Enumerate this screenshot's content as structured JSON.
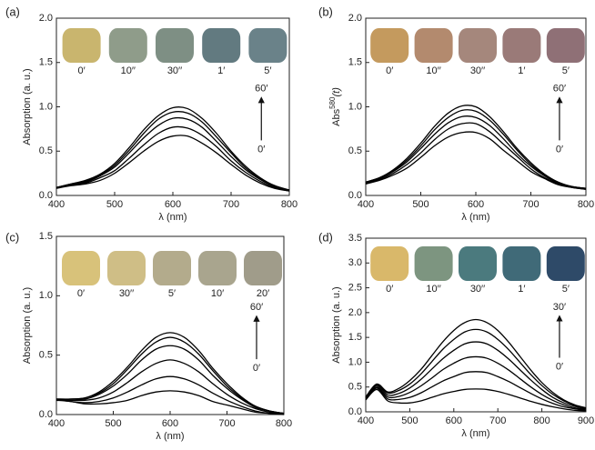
{
  "chart_data": [
    {
      "type": "line",
      "panel": "(a)",
      "xlabel": "λ (nm)",
      "ylabel": "Absorption (a. u.)",
      "x": [
        400,
        425,
        450,
        475,
        500,
        525,
        550,
        575,
        600,
        625,
        650,
        675,
        700,
        725,
        750,
        775,
        800
      ],
      "xlim": [
        400,
        800
      ],
      "xticks": [
        400,
        500,
        600,
        700,
        800
      ],
      "ylim": [
        0,
        2
      ],
      "yticks": [
        {
          "value": 0,
          "label": "0.0"
        },
        0.5,
        {
          "value": 1,
          "label": "1.0"
        },
        1.5,
        {
          "value": 2,
          "label": "2.0"
        }
      ],
      "series": [
        {
          "color": "#000000",
          "values": [
            0.08,
            0.11,
            0.13,
            0.17,
            0.25,
            0.37,
            0.5,
            0.61,
            0.67,
            0.67,
            0.59,
            0.48,
            0.35,
            0.23,
            0.14,
            0.08,
            0.05
          ]
        },
        {
          "color": "#000000",
          "values": [
            0.09,
            0.12,
            0.14,
            0.2,
            0.28,
            0.42,
            0.57,
            0.7,
            0.77,
            0.76,
            0.68,
            0.55,
            0.39,
            0.26,
            0.16,
            0.09,
            0.05
          ]
        },
        {
          "color": "#000000",
          "values": [
            0.09,
            0.12,
            0.15,
            0.22,
            0.32,
            0.48,
            0.65,
            0.79,
            0.87,
            0.86,
            0.77,
            0.61,
            0.44,
            0.29,
            0.18,
            0.1,
            0.06
          ]
        },
        {
          "color": "#000000",
          "values": [
            0.09,
            0.13,
            0.16,
            0.23,
            0.34,
            0.51,
            0.7,
            0.86,
            0.94,
            0.93,
            0.83,
            0.66,
            0.48,
            0.31,
            0.19,
            0.11,
            0.06
          ]
        },
        {
          "color": "#000000",
          "values": [
            0.09,
            0.13,
            0.17,
            0.24,
            0.36,
            0.54,
            0.74,
            0.9,
            0.99,
            0.98,
            0.87,
            0.7,
            0.5,
            0.33,
            0.2,
            0.11,
            0.06
          ]
        }
      ],
      "swatches": [
        {
          "label": "0′",
          "color": "#c9b56e"
        },
        {
          "label": "10′′",
          "color": "#8f9c8a"
        },
        {
          "label": "30′′",
          "color": "#7e8f84"
        },
        {
          "label": "1′",
          "color": "#627a80"
        },
        {
          "label": "5′",
          "color": "#6a8289"
        }
      ],
      "arrow": {
        "top": "60′",
        "bottom": "0′"
      }
    },
    {
      "type": "line",
      "panel": "(b)",
      "xlabel": "λ (nm)",
      "ylabel": "Abs",
      "ylabel_sup": "580",
      "ylabel_tail": "(t)",
      "x": [
        400,
        425,
        450,
        475,
        500,
        525,
        550,
        575,
        600,
        625,
        650,
        675,
        700,
        725,
        750,
        775,
        800
      ],
      "xlim": [
        400,
        800
      ],
      "xticks": [
        400,
        500,
        600,
        700,
        800
      ],
      "ylim": [
        0,
        2
      ],
      "yticks": [
        {
          "value": 0,
          "label": "0.0"
        },
        0.5,
        {
          "value": 1,
          "label": "1.0"
        },
        1.5,
        {
          "value": 2,
          "label": "2.0"
        }
      ],
      "series": [
        {
          "color": "#000000",
          "values": [
            0.13,
            0.17,
            0.23,
            0.31,
            0.43,
            0.56,
            0.66,
            0.71,
            0.71,
            0.64,
            0.51,
            0.39,
            0.27,
            0.19,
            0.12,
            0.09,
            0.07
          ]
        },
        {
          "color": "#000000",
          "values": [
            0.14,
            0.18,
            0.25,
            0.35,
            0.48,
            0.63,
            0.75,
            0.81,
            0.81,
            0.72,
            0.58,
            0.44,
            0.3,
            0.2,
            0.13,
            0.09,
            0.07
          ]
        },
        {
          "color": "#000000",
          "values": [
            0.14,
            0.19,
            0.27,
            0.38,
            0.53,
            0.69,
            0.82,
            0.89,
            0.88,
            0.79,
            0.64,
            0.47,
            0.33,
            0.22,
            0.14,
            0.1,
            0.08
          ]
        },
        {
          "color": "#000000",
          "values": [
            0.15,
            0.2,
            0.28,
            0.4,
            0.56,
            0.74,
            0.88,
            0.96,
            0.95,
            0.85,
            0.69,
            0.51,
            0.35,
            0.23,
            0.14,
            0.1,
            0.08
          ]
        },
        {
          "color": "#000000",
          "values": [
            0.15,
            0.2,
            0.29,
            0.42,
            0.59,
            0.78,
            0.93,
            1.01,
            1.0,
            0.89,
            0.72,
            0.53,
            0.37,
            0.24,
            0.15,
            0.1,
            0.08
          ]
        }
      ],
      "swatches": [
        {
          "label": "0′",
          "color": "#c49a5e"
        },
        {
          "label": "10′′",
          "color": "#b38a6e"
        },
        {
          "label": "30′′",
          "color": "#a5877c"
        },
        {
          "label": "1′",
          "color": "#9a7a78"
        },
        {
          "label": "5′",
          "color": "#8f7076"
        }
      ],
      "arrow": {
        "top": "60′",
        "bottom": "0′"
      }
    },
    {
      "type": "line",
      "panel": "(c)",
      "xlabel": "λ (nm)",
      "ylabel": "Absorption (a. u.)",
      "x": [
        400,
        425,
        450,
        475,
        500,
        525,
        550,
        575,
        600,
        625,
        650,
        675,
        700,
        725,
        750,
        775,
        800
      ],
      "xlim": [
        400,
        800
      ],
      "xticks": [
        400,
        500,
        600,
        700,
        800
      ],
      "ylim": [
        0,
        1.5
      ],
      "yticks": [
        {
          "value": 0,
          "label": "0.0"
        },
        0.5,
        {
          "value": 1,
          "label": "1.0"
        },
        1.5
      ],
      "series": [
        {
          "color": "#000000",
          "values": [
            0.12,
            0.11,
            0.09,
            0.09,
            0.1,
            0.12,
            0.16,
            0.19,
            0.2,
            0.19,
            0.16,
            0.11,
            0.08,
            0.05,
            0.02,
            0.01,
            0.0
          ]
        },
        {
          "color": "#000000",
          "values": [
            0.13,
            0.11,
            0.1,
            0.11,
            0.14,
            0.19,
            0.25,
            0.3,
            0.32,
            0.3,
            0.25,
            0.18,
            0.12,
            0.07,
            0.03,
            0.01,
            0.01
          ]
        },
        {
          "color": "#000000",
          "values": [
            0.13,
            0.12,
            0.12,
            0.14,
            0.19,
            0.27,
            0.36,
            0.43,
            0.46,
            0.43,
            0.36,
            0.26,
            0.17,
            0.1,
            0.05,
            0.02,
            0.01
          ]
        },
        {
          "color": "#000000",
          "values": [
            0.13,
            0.13,
            0.13,
            0.17,
            0.24,
            0.34,
            0.46,
            0.55,
            0.58,
            0.55,
            0.46,
            0.33,
            0.22,
            0.13,
            0.06,
            0.03,
            0.01
          ]
        },
        {
          "color": "#000000",
          "values": [
            0.13,
            0.13,
            0.14,
            0.18,
            0.26,
            0.38,
            0.51,
            0.61,
            0.65,
            0.61,
            0.51,
            0.37,
            0.24,
            0.14,
            0.07,
            0.03,
            0.01
          ]
        },
        {
          "color": "#000000",
          "values": [
            0.13,
            0.13,
            0.14,
            0.19,
            0.28,
            0.4,
            0.54,
            0.65,
            0.69,
            0.65,
            0.54,
            0.39,
            0.26,
            0.15,
            0.07,
            0.03,
            0.01
          ]
        }
      ],
      "swatches": [
        {
          "label": "0′",
          "color": "#d8c27a"
        },
        {
          "label": "30′′",
          "color": "#cfbe86"
        },
        {
          "label": "5′",
          "color": "#b3ab8c"
        },
        {
          "label": "10′",
          "color": "#a9a58e"
        },
        {
          "label": "20′",
          "color": "#a09c8a"
        }
      ],
      "arrow": {
        "top": "60′",
        "bottom": "0′"
      }
    },
    {
      "type": "line",
      "panel": "(d)",
      "xlabel": "λ (nm)",
      "ylabel": "Absorption (a. u.)",
      "x": [
        400,
        425,
        450,
        475,
        500,
        525,
        550,
        575,
        600,
        625,
        650,
        675,
        700,
        725,
        750,
        775,
        800,
        825,
        850,
        875,
        900
      ],
      "xlim": [
        400,
        900
      ],
      "xticks": [
        400,
        500,
        600,
        700,
        800,
        900
      ],
      "ylim": [
        0,
        3.5
      ],
      "yticks": [
        {
          "value": 0,
          "label": "0.0"
        },
        0.5,
        {
          "value": 1,
          "label": "1.0"
        },
        1.5,
        {
          "value": 2,
          "label": "2.0"
        },
        2.5,
        {
          "value": 3,
          "label": "3.0"
        },
        3.5
      ],
      "series": [
        {
          "color": "#000000",
          "values": [
            0.24,
            0.45,
            0.22,
            0.18,
            0.18,
            0.22,
            0.29,
            0.36,
            0.41,
            0.45,
            0.46,
            0.45,
            0.41,
            0.35,
            0.28,
            0.21,
            0.15,
            0.1,
            0.06,
            0.03,
            0.02
          ]
        },
        {
          "color": "#000000",
          "values": [
            0.25,
            0.48,
            0.26,
            0.25,
            0.29,
            0.38,
            0.5,
            0.62,
            0.71,
            0.79,
            0.81,
            0.79,
            0.71,
            0.61,
            0.49,
            0.37,
            0.26,
            0.17,
            0.1,
            0.06,
            0.03
          ]
        },
        {
          "color": "#000000",
          "values": [
            0.27,
            0.5,
            0.3,
            0.31,
            0.39,
            0.52,
            0.68,
            0.85,
            0.98,
            1.08,
            1.11,
            1.08,
            0.98,
            0.84,
            0.67,
            0.5,
            0.35,
            0.23,
            0.14,
            0.08,
            0.05
          ]
        },
        {
          "color": "#000000",
          "values": [
            0.28,
            0.53,
            0.34,
            0.37,
            0.48,
            0.65,
            0.86,
            1.07,
            1.24,
            1.37,
            1.41,
            1.37,
            1.24,
            1.06,
            0.85,
            0.64,
            0.45,
            0.29,
            0.18,
            0.11,
            0.06
          ]
        },
        {
          "color": "#000000",
          "values": [
            0.29,
            0.55,
            0.38,
            0.43,
            0.56,
            0.76,
            1.01,
            1.26,
            1.46,
            1.61,
            1.66,
            1.61,
            1.46,
            1.25,
            1.0,
            0.75,
            0.53,
            0.35,
            0.22,
            0.13,
            0.07
          ]
        },
        {
          "color": "#000000",
          "values": [
            0.3,
            0.56,
            0.4,
            0.47,
            0.63,
            0.85,
            1.13,
            1.41,
            1.64,
            1.8,
            1.86,
            1.8,
            1.64,
            1.4,
            1.12,
            0.84,
            0.59,
            0.39,
            0.24,
            0.14,
            0.08
          ]
        }
      ],
      "swatches": [
        {
          "label": "0′",
          "color": "#d9b86a"
        },
        {
          "label": "10′′",
          "color": "#7d9580"
        },
        {
          "label": "30′′",
          "color": "#4b7a7e"
        },
        {
          "label": "1′",
          "color": "#406a78"
        },
        {
          "label": "5′",
          "color": "#2e4a68"
        }
      ],
      "arrow": {
        "top": "30′",
        "bottom": "0′"
      }
    }
  ]
}
